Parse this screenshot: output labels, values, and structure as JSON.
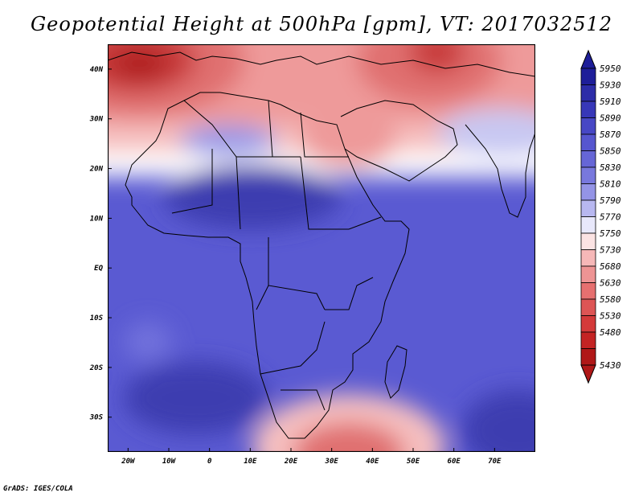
{
  "title": "Geopotential Height at 500hPa [gpm], VT: 2017032512",
  "credit": "GrADS: IGES/COLA",
  "map": {
    "lon_range": [
      -25,
      80
    ],
    "lat_range": [
      -37,
      45
    ],
    "lat_ticks": [
      {
        "lat": 40,
        "label": "40N"
      },
      {
        "lat": 30,
        "label": "30N"
      },
      {
        "lat": 20,
        "label": "20N"
      },
      {
        "lat": 10,
        "label": "10N"
      },
      {
        "lat": 0,
        "label": "EQ"
      },
      {
        "lat": -10,
        "label": "10S"
      },
      {
        "lat": -20,
        "label": "20S"
      },
      {
        "lat": -30,
        "label": "30S"
      }
    ],
    "lon_ticks": [
      {
        "lon": -20,
        "label": "20W"
      },
      {
        "lon": -10,
        "label": "10W"
      },
      {
        "lon": 0,
        "label": "0"
      },
      {
        "lon": 10,
        "label": "10E"
      },
      {
        "lon": 20,
        "label": "20E"
      },
      {
        "lon": 30,
        "label": "30E"
      },
      {
        "lon": 40,
        "label": "40E"
      },
      {
        "lon": 50,
        "label": "50E"
      },
      {
        "lon": 60,
        "label": "60E"
      },
      {
        "lon": 70,
        "label": "70E"
      }
    ]
  },
  "colorbar": {
    "levels": [
      "5950",
      "5930",
      "5910",
      "5890",
      "5870",
      "5850",
      "5830",
      "5810",
      "5790",
      "5770",
      "5750",
      "5730",
      "5680",
      "5630",
      "5580",
      "5530",
      "5480",
      "5430"
    ],
    "colors": [
      "#1e1e99",
      "#2c2ca8",
      "#3737b8",
      "#4747c5",
      "#5656cf",
      "#6666d6",
      "#7878dd",
      "#9494e6",
      "#b8b8f0",
      "#e8e8fb",
      "#fbe3e3",
      "#f6b8b8",
      "#ee9494",
      "#e67070",
      "#dd5555",
      "#d43a3a",
      "#c42424",
      "#b01818"
    ]
  },
  "field_colors": {
    "deep_blue": "#3d3db0",
    "blue": "#5a5ad2",
    "mid_blue": "#7171dc",
    "light_blue": "#9a9ae8",
    "pale_blue": "#c8c8f2",
    "white": "#ffffff",
    "pale_red": "#f6c0c0",
    "light_red": "#ee9a9a",
    "red": "#e07070",
    "deep_red": "#c83a3a",
    "darkest_red": "#b02020"
  }
}
